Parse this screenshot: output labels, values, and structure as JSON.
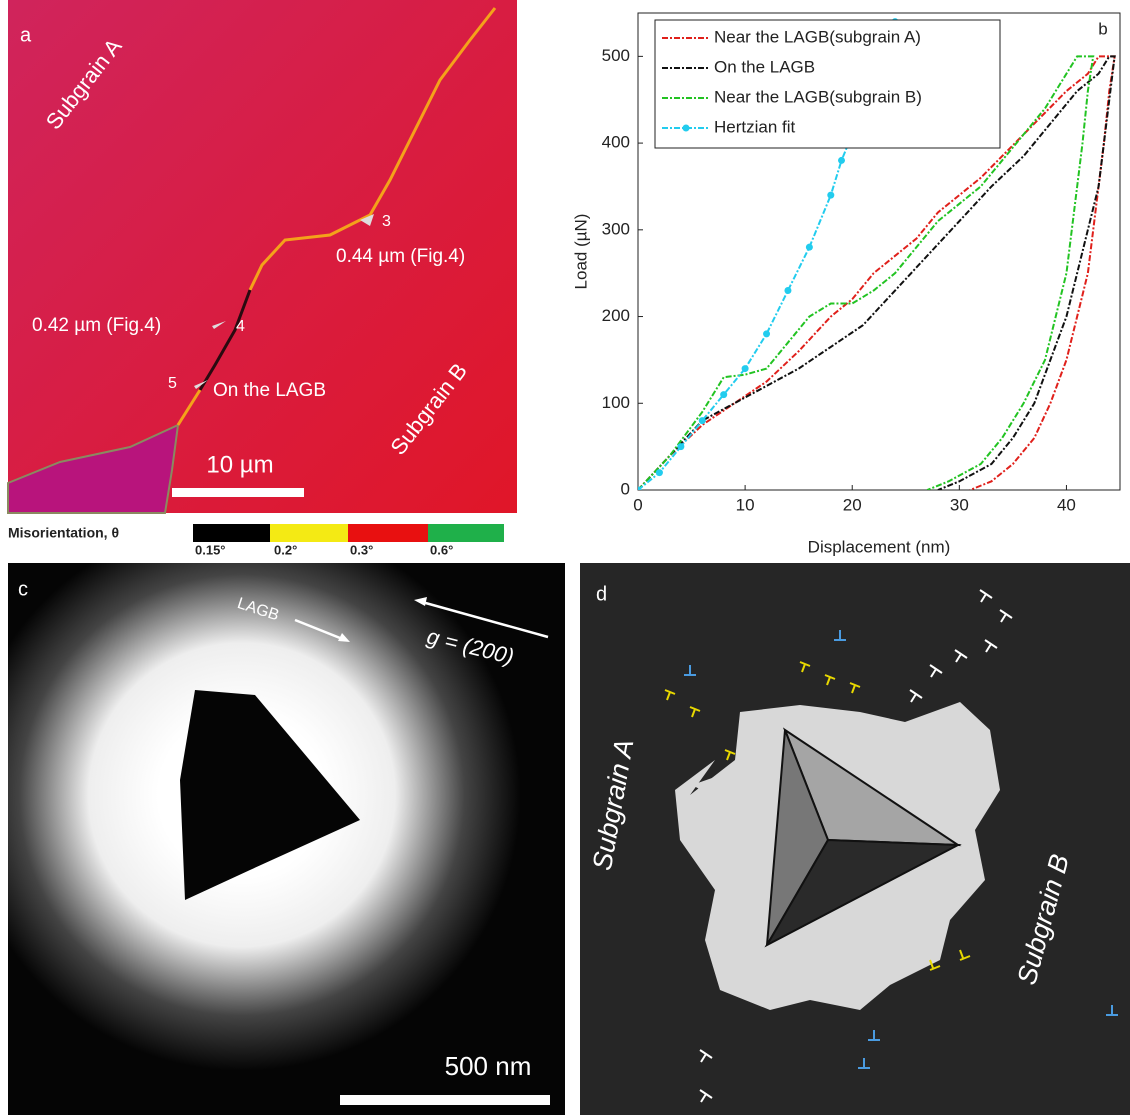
{
  "panel_a": {
    "label": "a",
    "subgrain_a": "Subgrain A",
    "subgrain_b": "Subgrain B",
    "points": [
      {
        "n": "3",
        "note": "0.44 µm (Fig.4)"
      },
      {
        "n": "4",
        "note": "0.42 µm (Fig.4)"
      },
      {
        "n": "5",
        "note": "On the LAGB"
      }
    ],
    "scale_bar": "10 µm",
    "colorbar_title": "Misorientation, θ",
    "colorbar_labels": [
      "0.15°",
      "0.2°",
      "0.3°",
      "0.6°"
    ]
  },
  "chart_data": {
    "type": "line",
    "panel_label": "b",
    "xlabel": "Displacement (nm)",
    "ylabel": "Load (µN)",
    "xlim": [
      0,
      45
    ],
    "ylim": [
      0,
      550
    ],
    "xticks": [
      0,
      10,
      20,
      30,
      40
    ],
    "yticks": [
      0,
      100,
      200,
      300,
      400,
      500
    ],
    "series": [
      {
        "name": "Near the LAGB(subgrain A)",
        "color": "#e0201b",
        "x": [
          0,
          3,
          6,
          9,
          12,
          15,
          18,
          20,
          22,
          24,
          26,
          28,
          30,
          32,
          34,
          36,
          38,
          40,
          42,
          43,
          44.5,
          44,
          43.5,
          43,
          42.5,
          42,
          41,
          40,
          38.5,
          37,
          35,
          33,
          31
        ],
        "values": [
          0,
          40,
          75,
          100,
          125,
          160,
          200,
          220,
          250,
          270,
          290,
          320,
          340,
          360,
          385,
          410,
          435,
          460,
          480,
          500,
          500,
          460,
          400,
          350,
          300,
          250,
          200,
          150,
          100,
          60,
          30,
          10,
          0
        ]
      },
      {
        "name": "On the LAGB",
        "color": "#111111",
        "x": [
          0,
          3,
          6,
          9,
          12,
          15,
          18,
          21,
          24,
          27,
          30,
          33,
          36,
          39,
          41,
          43,
          44,
          44.5,
          44,
          43.5,
          43,
          42,
          41,
          40,
          38.5,
          37,
          35,
          33,
          30,
          28
        ],
        "values": [
          0,
          40,
          80,
          100,
          120,
          140,
          165,
          190,
          230,
          270,
          310,
          350,
          385,
          430,
          460,
          480,
          500,
          500,
          450,
          400,
          350,
          300,
          250,
          200,
          150,
          100,
          60,
          30,
          10,
          0
        ]
      },
      {
        "name": "Near the LAGB(subgrain B)",
        "color": "#22c322",
        "x": [
          0,
          3,
          6,
          8,
          10,
          12,
          14,
          16,
          18,
          20,
          22,
          24,
          26,
          28,
          30,
          32,
          34,
          36,
          38,
          40,
          41,
          42.5,
          42,
          41.5,
          41,
          40.5,
          40,
          39,
          38,
          36,
          34,
          32,
          29,
          27
        ],
        "values": [
          0,
          40,
          90,
          130,
          133,
          140,
          170,
          200,
          215,
          215,
          230,
          250,
          280,
          310,
          330,
          350,
          380,
          410,
          440,
          480,
          500,
          500,
          460,
          400,
          350,
          300,
          250,
          200,
          150,
          100,
          60,
          30,
          10,
          0
        ]
      },
      {
        "name": "Hertzian fit",
        "color": "#22ccee",
        "markers": true,
        "x": [
          0,
          2,
          4,
          6,
          8,
          10,
          12,
          14,
          16,
          18,
          19,
          20,
          22,
          24
        ],
        "values": [
          0,
          20,
          50,
          80,
          110,
          140,
          180,
          230,
          280,
          340,
          380,
          410,
          470,
          540
        ]
      }
    ]
  },
  "panel_c": {
    "label": "c",
    "boundary": "LAGB",
    "g_vector": "g = (200)",
    "scale_bar": "500 nm"
  },
  "panel_d": {
    "label": "d",
    "subgrain_a": "Subgrain A",
    "subgrain_b": "Subgrain B"
  }
}
